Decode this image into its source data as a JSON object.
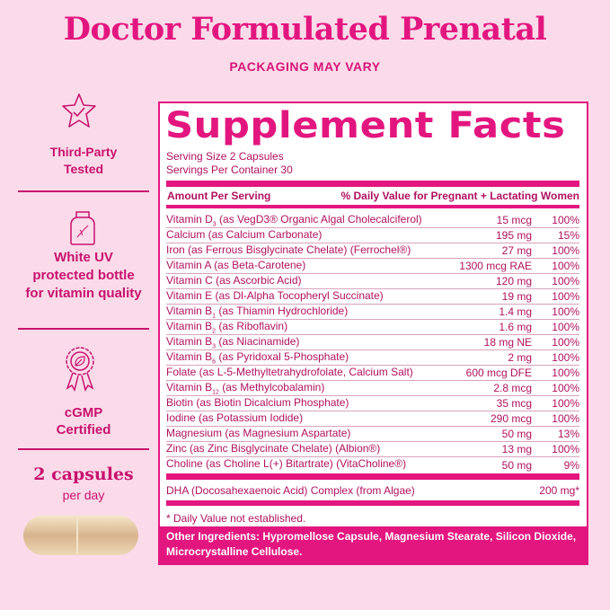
{
  "title": "Doctor Formulated Prenatal",
  "subtitle": "PACKAGING MAY VARY",
  "features": [
    {
      "label_lines": [
        "Third-Party",
        "Tested"
      ],
      "icon": "star-check-icon"
    },
    {
      "label_lines": [
        "White UV",
        "protected bottle",
        "for vitamin quality"
      ],
      "icon": "bottle-icon"
    },
    {
      "label_lines": [
        "cGMP",
        "Certified"
      ],
      "icon": "award-ribbon-icon"
    }
  ],
  "dosage": {
    "count": "2 capsules",
    "per": "per day"
  },
  "facts": {
    "heading": "Supplement Facts",
    "serving_size": "Serving Size 2 Capsules",
    "servings_per_container": "Servings Per Container 30",
    "col_amount": "Amount Per Serving",
    "col_dv": "% Daily Value for Pregnant + Lactating Women",
    "rows": [
      {
        "name": "Vitamin D",
        "sub": "3",
        "rest": " (as VegD3® Organic Algal Cholecalciferol)",
        "amount": "15 mcg",
        "dv": "100%"
      },
      {
        "name": "Calcium (as Calcium Carbonate)",
        "sub": "",
        "rest": "",
        "amount": "195 mg",
        "dv": "15%"
      },
      {
        "name": "Iron (as Ferrous Bisglycinate Chelate) (Ferrochel®)",
        "sub": "",
        "rest": "",
        "amount": "27 mg",
        "dv": "100%"
      },
      {
        "name": "Vitamin A (as Beta-Carotene)",
        "sub": "",
        "rest": "",
        "amount": "1300 mcg RAE",
        "dv": "100%"
      },
      {
        "name": "Vitamin C (as Ascorbic Acid)",
        "sub": "",
        "rest": "",
        "amount": "120 mg",
        "dv": "100%"
      },
      {
        "name": "Vitamin E (as Dl-Alpha Tocopheryl Succinate)",
        "sub": "",
        "rest": "",
        "amount": "19 mg",
        "dv": "100%"
      },
      {
        "name": "Vitamin B",
        "sub": "1",
        "rest": " (as Thiamin Hydrochloride)",
        "amount": "1.4 mg",
        "dv": "100%"
      },
      {
        "name": "Vitamin B",
        "sub": "2",
        "rest": " (as Riboflavin)",
        "amount": "1.6 mg",
        "dv": "100%"
      },
      {
        "name": "Vitamin B",
        "sub": "3",
        "rest": " (as Niacinamide)",
        "amount": "18 mg NE",
        "dv": "100%"
      },
      {
        "name": "Vitamin B",
        "sub": "6",
        "rest": " (as Pyridoxal 5-Phosphate)",
        "amount": "2 mg",
        "dv": "100%"
      },
      {
        "name": "Folate (as L-5-Methyltetrahydrofolate, Calcium Salt)",
        "sub": "",
        "rest": "",
        "amount": "600 mcg DFE",
        "dv": "100%"
      },
      {
        "name": "Vitamin B",
        "sub": "12",
        "rest": " (as Methylcobalamin)",
        "amount": "2.8 mcg",
        "dv": "100%"
      },
      {
        "name": "Biotin (as Biotin Dicalcium Phosphate)",
        "sub": "",
        "rest": "",
        "amount": "35 mcg",
        "dv": "100%"
      },
      {
        "name": "Iodine (as Potassium Iodide)",
        "sub": "",
        "rest": "",
        "amount": "290 mcg",
        "dv": "100%"
      },
      {
        "name": "Magnesium (as Magnesium Aspartate)",
        "sub": "",
        "rest": "",
        "amount": "50 mg",
        "dv": "13%"
      },
      {
        "name": "Zinc (as Zinc Bisglycinate Chelate) (Albion®)",
        "sub": "",
        "rest": "",
        "amount": "13 mg",
        "dv": "100%"
      },
      {
        "name": "Choline (as Choline L(+) Bitartrate) (VitaCholine®)",
        "sub": "",
        "rest": "",
        "amount": "50 mg",
        "dv": "9%"
      }
    ],
    "dha": {
      "name": "DHA (Docosahexaenoic Acid) Complex (from Algae)",
      "amount": "200 mg*"
    },
    "footnote": "* Daily Value not established.",
    "other_ingredients": "Other Ingredients: Hypromellose Capsule, Magnesium Stearate, Silicon Dioxide, Microcrystalline Cellulose."
  },
  "colors": {
    "brand": "#e3167f",
    "text": "#b0125f",
    "background": "#fbdbe9"
  }
}
